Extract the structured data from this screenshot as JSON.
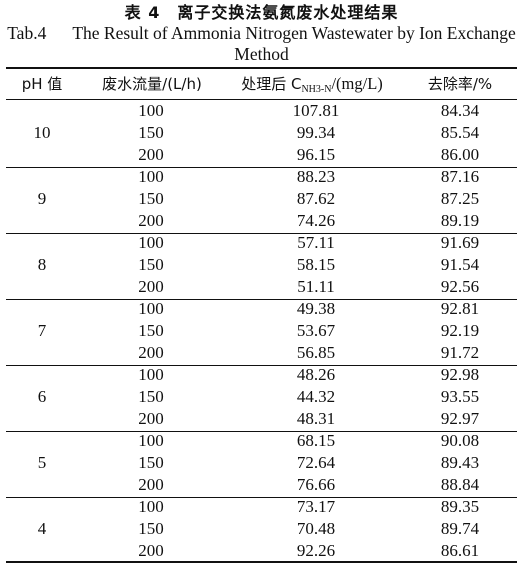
{
  "title_cn": "表 4　离子交换法氨氮废水处理结果",
  "title_en_label": "Tab.4",
  "title_en_text": "The Result of Ammonia Nitrogen Wastewater by Ion Exchange Method",
  "headers": {
    "ph": "pH 值",
    "flow": "废水流量/(L/h)",
    "conc_prefix": "处理后 C",
    "conc_sub": "NH3-N",
    "conc_suffix": "/(mg/L)",
    "rate": "去除率/%"
  },
  "groups": [
    {
      "ph": "10",
      "rows": [
        {
          "flow": "100",
          "conc": "107.81",
          "rate": "84.34"
        },
        {
          "flow": "150",
          "conc": "99.34",
          "rate": "85.54"
        },
        {
          "flow": "200",
          "conc": "96.15",
          "rate": "86.00"
        }
      ]
    },
    {
      "ph": "9",
      "rows": [
        {
          "flow": "100",
          "conc": "88.23",
          "rate": "87.16"
        },
        {
          "flow": "150",
          "conc": "87.62",
          "rate": "87.25"
        },
        {
          "flow": "200",
          "conc": "74.26",
          "rate": "89.19"
        }
      ]
    },
    {
      "ph": "8",
      "rows": [
        {
          "flow": "100",
          "conc": "57.11",
          "rate": "91.69"
        },
        {
          "flow": "150",
          "conc": "58.15",
          "rate": "91.54"
        },
        {
          "flow": "200",
          "conc": "51.11",
          "rate": "92.56"
        }
      ]
    },
    {
      "ph": "7",
      "rows": [
        {
          "flow": "100",
          "conc": "49.38",
          "rate": "92.81"
        },
        {
          "flow": "150",
          "conc": "53.67",
          "rate": "92.19"
        },
        {
          "flow": "200",
          "conc": "56.85",
          "rate": "91.72"
        }
      ]
    },
    {
      "ph": "6",
      "rows": [
        {
          "flow": "100",
          "conc": "48.26",
          "rate": "92.98"
        },
        {
          "flow": "150",
          "conc": "44.32",
          "rate": "93.55"
        },
        {
          "flow": "200",
          "conc": "48.31",
          "rate": "92.97"
        }
      ]
    },
    {
      "ph": "5",
      "rows": [
        {
          "flow": "100",
          "conc": "68.15",
          "rate": "90.08"
        },
        {
          "flow": "150",
          "conc": "72.64",
          "rate": "89.43"
        },
        {
          "flow": "200",
          "conc": "76.66",
          "rate": "88.84"
        }
      ]
    },
    {
      "ph": "4",
      "rows": [
        {
          "flow": "100",
          "conc": "73.17",
          "rate": "89.35"
        },
        {
          "flow": "150",
          "conc": "70.48",
          "rate": "89.74"
        },
        {
          "flow": "200",
          "conc": "92.26",
          "rate": "86.61"
        }
      ]
    }
  ]
}
